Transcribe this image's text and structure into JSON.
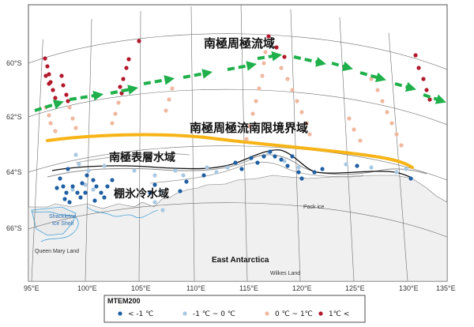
{
  "lat_labels": [
    "60°S",
    "62°S",
    "64°S",
    "66°S"
  ],
  "lon_labels": [
    "95°E",
    "100°E",
    "105°E",
    "110°E",
    "115°E",
    "120°E",
    "125°E",
    "130°E",
    "135°E"
  ],
  "zones": {
    "acc": "南極周極流域",
    "saccf": "南極周極流南限境界域",
    "surface": "南極表層水域",
    "shelf": "棚氷冷水域"
  },
  "places": {
    "shackleton": "Shackleton\nIce Shelf",
    "queen_mary": "Queen Mary Land",
    "wilkes": "Wilkes Land",
    "pack_ice": "Pack ice",
    "east_antarctica": "East Antarctica"
  },
  "legend": {
    "title": "MTEM200",
    "items": [
      {
        "label": "< -1 ℃",
        "color": "#1f5fa3"
      },
      {
        "label": "-1 ℃ ~ 0 ℃",
        "color": "#a9c8e2"
      },
      {
        "label": "0 ℃ ~ 1℃",
        "color": "#efb8a0"
      },
      {
        "label": "1℃ <",
        "color": "#b2182b"
      }
    ]
  },
  "colors": {
    "acc_arrow": "#1fb04b",
    "boundary": "#f7b416",
    "land": "#f0f0f0",
    "coast": "#4aa3d8"
  }
}
